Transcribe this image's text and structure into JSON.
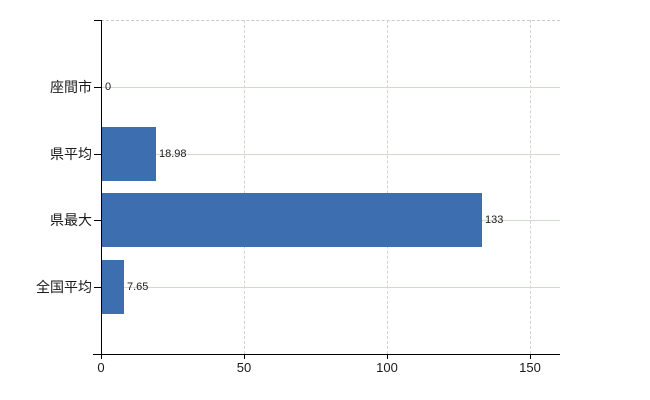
{
  "chart_data": {
    "type": "bar",
    "orientation": "horizontal",
    "title": "",
    "xlabel": "",
    "ylabel": "",
    "categories": [
      "座間市",
      "県平均",
      "県最大",
      "全国平均"
    ],
    "values": [
      0,
      18.98,
      133,
      7.65
    ],
    "value_labels": [
      "0",
      "18.98",
      "133",
      "7.65"
    ],
    "xlim": [
      0,
      160.5
    ],
    "x_ticks": [
      0,
      50,
      100,
      150
    ],
    "x_tick_labels": [
      "0",
      "50",
      "100",
      "150"
    ],
    "grid": {
      "horizontal_style": "solid",
      "vertical_style": "dashed",
      "top_border_style": "dashed"
    },
    "colors": {
      "bar": "#3d6fb0",
      "h_gridline": "#d2d9ce",
      "v_gridline": "#d5d0d5",
      "top_border": "#c9c9c9",
      "axis": "#000000",
      "text": "#1a1a1a",
      "background": "#ffffff"
    }
  }
}
